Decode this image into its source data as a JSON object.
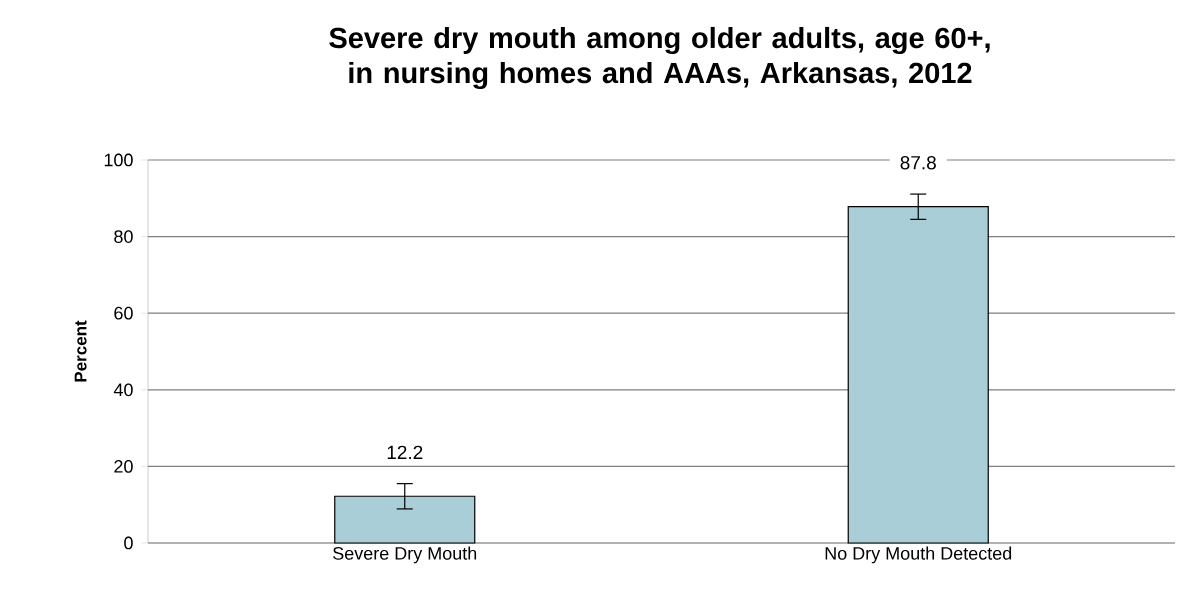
{
  "chart_data": {
    "type": "bar",
    "title": "Severe dry mouth among older adults, age 60+, in nursing homes and AAAs, Arkansas, 2012",
    "ylabel": "Percent",
    "categories": [
      "Severe Dry Mouth",
      "No Dry Mouth Detected"
    ],
    "values": [
      12.2,
      87.8
    ],
    "errors": [
      3.3,
      3.3
    ],
    "color": "#a9ced7",
    "ylim": [
      0,
      100
    ],
    "yticks": [
      0,
      20,
      40,
      60,
      80,
      100
    ],
    "grid": "y",
    "data_labels": true
  }
}
